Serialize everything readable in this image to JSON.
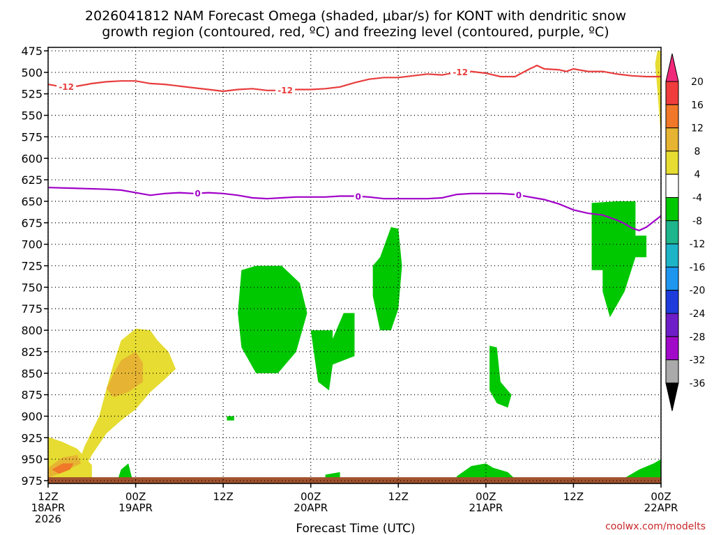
{
  "chart_data": {
    "type": "time-height",
    "title_line1": "2026041812 NAM Forecast Omega (shaded, μbar/s) for KONT with dendritic snow",
    "title_line2": "growth region (contoured, red, ºC) and freezing level (contoured, purple, ºC)",
    "xlabel": "Forecast Time (UTC)",
    "credit": "coolwx.com/modelts",
    "y_axis": {
      "unit": "mb",
      "range": [
        475,
        975
      ],
      "ticks": [
        "475",
        "500",
        "525",
        "550",
        "575",
        "600",
        "625",
        "650",
        "675",
        "700",
        "725",
        "750",
        "775",
        "800",
        "825",
        "850",
        "875",
        "900",
        "925",
        "950",
        "975"
      ]
    },
    "x_axis": {
      "unit": "forecast hour",
      "range": [
        0,
        84
      ],
      "ticks": [
        {
          "hour": 0,
          "line1": "12Z",
          "line2": "18APR",
          "line3": "2026"
        },
        {
          "hour": 12,
          "line1": "00Z",
          "line2": "19APR",
          "line3": ""
        },
        {
          "hour": 24,
          "line1": "12Z",
          "line2": "",
          "line3": ""
        },
        {
          "hour": 36,
          "line1": "00Z",
          "line2": "20APR",
          "line3": ""
        },
        {
          "hour": 48,
          "line1": "12Z",
          "line2": "",
          "line3": ""
        },
        {
          "hour": 60,
          "line1": "00Z",
          "line2": "21APR",
          "line3": ""
        },
        {
          "hour": 72,
          "line1": "12Z",
          "line2": "",
          "line3": ""
        },
        {
          "hour": 84,
          "line1": "00Z",
          "line2": "22APR",
          "line3": ""
        }
      ]
    },
    "colorbar": {
      "labels": [
        "20",
        "16",
        "12",
        "8",
        "4",
        "-4",
        "-8",
        "-12",
        "-16",
        "-20",
        "-24",
        "-28",
        "-32",
        "-36"
      ],
      "colors": [
        "#f0287a",
        "#f03c3c",
        "#f07828",
        "#e6b432",
        "#e6dc32",
        "#ffffff",
        "#00c800",
        "#1eb48c",
        "#1eb4c8",
        "#1e96f0",
        "#1e3cdc",
        "#6e1ec8",
        "#a00ac8",
        "#aaaaaa",
        "#000000"
      ]
    },
    "red_contour": {
      "label": "-12",
      "label_hours": [
        2.5,
        32.5,
        56.5
      ],
      "points": [
        [
          0,
          514
        ],
        [
          2,
          517
        ],
        [
          4,
          516
        ],
        [
          6,
          513
        ],
        [
          8,
          511
        ],
        [
          10,
          510
        ],
        [
          12,
          510
        ],
        [
          14,
          513
        ],
        [
          16,
          514
        ],
        [
          18,
          516
        ],
        [
          20,
          518
        ],
        [
          22,
          520
        ],
        [
          24,
          522
        ],
        [
          26,
          520
        ],
        [
          28,
          519
        ],
        [
          30,
          521
        ],
        [
          32,
          521
        ],
        [
          34,
          520
        ],
        [
          36,
          520
        ],
        [
          38,
          519
        ],
        [
          40,
          517
        ],
        [
          42,
          512
        ],
        [
          44,
          508
        ],
        [
          46,
          506
        ],
        [
          48,
          506
        ],
        [
          50,
          504
        ],
        [
          52,
          502
        ],
        [
          54,
          503
        ],
        [
          56,
          500
        ],
        [
          58,
          499
        ],
        [
          60,
          501
        ],
        [
          62,
          505
        ],
        [
          64,
          505
        ],
        [
          66,
          496
        ],
        [
          67,
          492
        ],
        [
          68,
          496
        ],
        [
          70,
          497
        ],
        [
          71,
          499
        ],
        [
          72,
          496
        ],
        [
          74,
          499
        ],
        [
          76,
          499
        ],
        [
          78,
          502
        ],
        [
          80,
          504
        ],
        [
          82,
          505
        ],
        [
          84,
          505
        ]
      ]
    },
    "purple_contour": {
      "label": "0",
      "label_hours": [
        20.5,
        42.5,
        64.5
      ],
      "points": [
        [
          0,
          634
        ],
        [
          4,
          635
        ],
        [
          8,
          636
        ],
        [
          10,
          637
        ],
        [
          12,
          640
        ],
        [
          14,
          643
        ],
        [
          16,
          641
        ],
        [
          18,
          640
        ],
        [
          20,
          641
        ],
        [
          22,
          640
        ],
        [
          24,
          641
        ],
        [
          26,
          643
        ],
        [
          28,
          646
        ],
        [
          30,
          647
        ],
        [
          32,
          646
        ],
        [
          34,
          645
        ],
        [
          36,
          645
        ],
        [
          38,
          645
        ],
        [
          40,
          644
        ],
        [
          42,
          644
        ],
        [
          44,
          645
        ],
        [
          46,
          647
        ],
        [
          48,
          647
        ],
        [
          50,
          647
        ],
        [
          52,
          647
        ],
        [
          54,
          646
        ],
        [
          56,
          642
        ],
        [
          58,
          641
        ],
        [
          60,
          641
        ],
        [
          62,
          641
        ],
        [
          64,
          642
        ],
        [
          66,
          645
        ],
        [
          68,
          648
        ],
        [
          70,
          653
        ],
        [
          72,
          660
        ],
        [
          74,
          664
        ],
        [
          76,
          666
        ],
        [
          78,
          672
        ],
        [
          79,
          676
        ],
        [
          80,
          681
        ],
        [
          81,
          684
        ],
        [
          82,
          680
        ],
        [
          84,
          667
        ]
      ]
    },
    "omega_regions": [
      {
        "value": 6,
        "color": "#e6dc32",
        "points": [
          [
            0,
            924
          ],
          [
            2,
            930
          ],
          [
            4,
            938
          ],
          [
            6,
            957
          ],
          [
            6,
            975
          ],
          [
            0,
            975
          ]
        ]
      },
      {
        "value": 6,
        "color": "#e6dc32",
        "points": [
          [
            4,
            958
          ],
          [
            5,
            935
          ],
          [
            7,
            900
          ],
          [
            8,
            868
          ],
          [
            9,
            838
          ],
          [
            10,
            812
          ],
          [
            12,
            798
          ],
          [
            14,
            800
          ],
          [
            15,
            812
          ],
          [
            16.5,
            825
          ],
          [
            17.5,
            845
          ],
          [
            16,
            857
          ],
          [
            14,
            872
          ],
          [
            12,
            892
          ],
          [
            10,
            905
          ],
          [
            8,
            920
          ],
          [
            6,
            945
          ],
          [
            5,
            960
          ]
        ]
      },
      {
        "value": 10,
        "color": "#e6b432",
        "points": [
          [
            8,
            868
          ],
          [
            9,
            850
          ],
          [
            10,
            835
          ],
          [
            12,
            825
          ],
          [
            13,
            838
          ],
          [
            13,
            860
          ],
          [
            11,
            872
          ],
          [
            9,
            878
          ]
        ]
      },
      {
        "value": 10,
        "color": "#e6b432",
        "points": [
          [
            0,
            960
          ],
          [
            2,
            948
          ],
          [
            4,
            945
          ],
          [
            4.5,
            955
          ],
          [
            2,
            965
          ],
          [
            0,
            972
          ]
        ]
      },
      {
        "value": 14,
        "color": "#f07828",
        "points": [
          [
            0.5,
            962
          ],
          [
            2,
            955
          ],
          [
            3.5,
            955
          ],
          [
            3,
            962
          ],
          [
            1.5,
            967
          ]
        ]
      },
      {
        "value": 6,
        "color": "#e6dc32",
        "points": [
          [
            83.5,
            475
          ],
          [
            84,
            475
          ],
          [
            84,
            575
          ],
          [
            83.5,
            520
          ],
          [
            83.2,
            490
          ]
        ]
      },
      {
        "value": -6,
        "color": "#00c800",
        "points": [
          [
            26.5,
            730
          ],
          [
            28.5,
            725
          ],
          [
            32,
            725
          ],
          [
            34.5,
            745
          ],
          [
            35.5,
            780
          ],
          [
            34,
            825
          ],
          [
            31.5,
            850
          ],
          [
            28.5,
            850
          ],
          [
            26.5,
            820
          ],
          [
            26,
            780
          ]
        ]
      },
      {
        "value": -6,
        "color": "#00c800",
        "points": [
          [
            36,
            800
          ],
          [
            39,
            800
          ],
          [
            39,
            810
          ],
          [
            40.5,
            780
          ],
          [
            42,
            780
          ],
          [
            42,
            830
          ],
          [
            39,
            840
          ],
          [
            38.5,
            870
          ],
          [
            37,
            860
          ],
          [
            36.5,
            830
          ]
        ]
      },
      {
        "value": -6,
        "color": "#00c800",
        "points": [
          [
            45.5,
            715
          ],
          [
            47,
            680
          ],
          [
            48,
            682
          ],
          [
            48.5,
            725
          ],
          [
            48,
            775
          ],
          [
            47,
            800
          ],
          [
            45.5,
            800
          ],
          [
            44.5,
            760
          ],
          [
            44.5,
            725
          ]
        ]
      },
      {
        "value": -6,
        "color": "#00c800",
        "points": [
          [
            60.5,
            818
          ],
          [
            61.5,
            820
          ],
          [
            62,
            860
          ],
          [
            63.5,
            875
          ],
          [
            63,
            890
          ],
          [
            61.5,
            885
          ],
          [
            60.5,
            870
          ]
        ]
      },
      {
        "value": -6,
        "color": "#00c800",
        "points": [
          [
            74.5,
            652
          ],
          [
            78,
            650
          ],
          [
            80.5,
            650
          ],
          [
            80.5,
            690
          ],
          [
            82,
            690
          ],
          [
            82,
            715
          ],
          [
            80.5,
            715
          ],
          [
            79,
            755
          ],
          [
            77,
            785
          ],
          [
            76,
            755
          ],
          [
            76,
            730
          ],
          [
            74.5,
            730
          ]
        ]
      },
      {
        "value": -6,
        "color": "#00c800",
        "points": [
          [
            10,
            962
          ],
          [
            11,
            955
          ],
          [
            11.5,
            972
          ],
          [
            9.5,
            975
          ]
        ]
      },
      {
        "value": -6,
        "color": "#00c800",
        "points": [
          [
            56,
            970
          ],
          [
            58,
            958
          ],
          [
            60,
            955
          ],
          [
            61,
            960
          ],
          [
            63,
            965
          ],
          [
            64,
            973
          ],
          [
            56,
            975
          ]
        ]
      },
      {
        "value": -6,
        "color": "#00c800",
        "points": [
          [
            79,
            972
          ],
          [
            81,
            962
          ],
          [
            83,
            955
          ],
          [
            84,
            950
          ],
          [
            84,
            975
          ],
          [
            79,
            975
          ]
        ]
      },
      {
        "value": -6,
        "color": "#00c800",
        "points": [
          [
            38,
            968
          ],
          [
            40,
            965
          ],
          [
            40,
            975
          ],
          [
            38,
            975
          ]
        ]
      },
      {
        "value": -6,
        "color": "#00c800",
        "points": [
          [
            24.5,
            900
          ],
          [
            25.5,
            900
          ],
          [
            25.5,
            905
          ],
          [
            24.5,
            905
          ]
        ]
      }
    ]
  }
}
